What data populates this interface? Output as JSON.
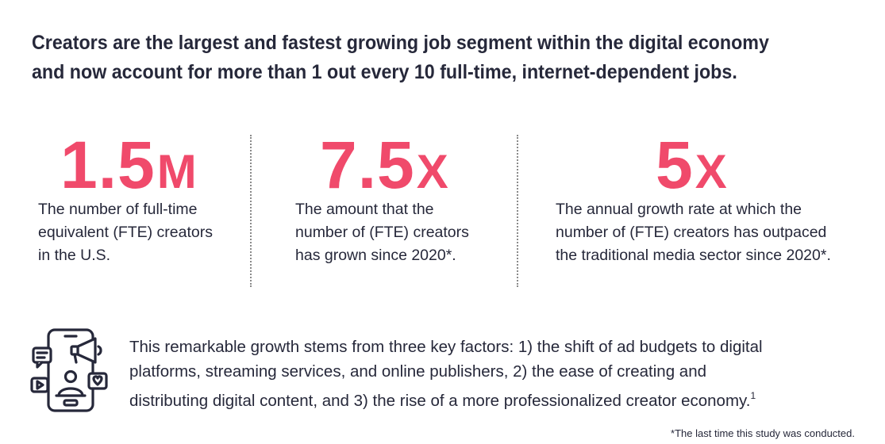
{
  "headline": {
    "line1": "Creators are the largest and fastest growing job segment within the digital economy",
    "line2": "and now account for more than 1 out every 10 full-time, internet-dependent jobs."
  },
  "stats": [
    {
      "number": "1.5",
      "unit": "M",
      "desc_lines": [
        "The number of full-time",
        "equivalent (FTE) creators",
        "in the U.S."
      ]
    },
    {
      "number": "7.5",
      "unit": "X",
      "desc_lines": [
        "The amount that the",
        "number of (FTE) creators",
        "has grown since 2020*."
      ]
    },
    {
      "number": "5",
      "unit": "X",
      "desc_lines": [
        "The annual growth rate at which the",
        "number of (FTE) creators has outpaced",
        "the traditional media sector since 2020*."
      ]
    }
  ],
  "icon": "creator-content-icon",
  "factors": {
    "lines": [
      "This remarkable growth stems from three key factors: 1) the shift of ad budgets to digital",
      "platforms, streaming services, and online publishers, 2) the ease of creating and",
      "distributing digital content, and 3) the rise of a more professionalized creator economy."
    ],
    "footnote_marker": "1"
  },
  "footnote": "*The last time this study was conducted.",
  "colors": {
    "accent": "#f04a6b",
    "text": "#26283a"
  }
}
